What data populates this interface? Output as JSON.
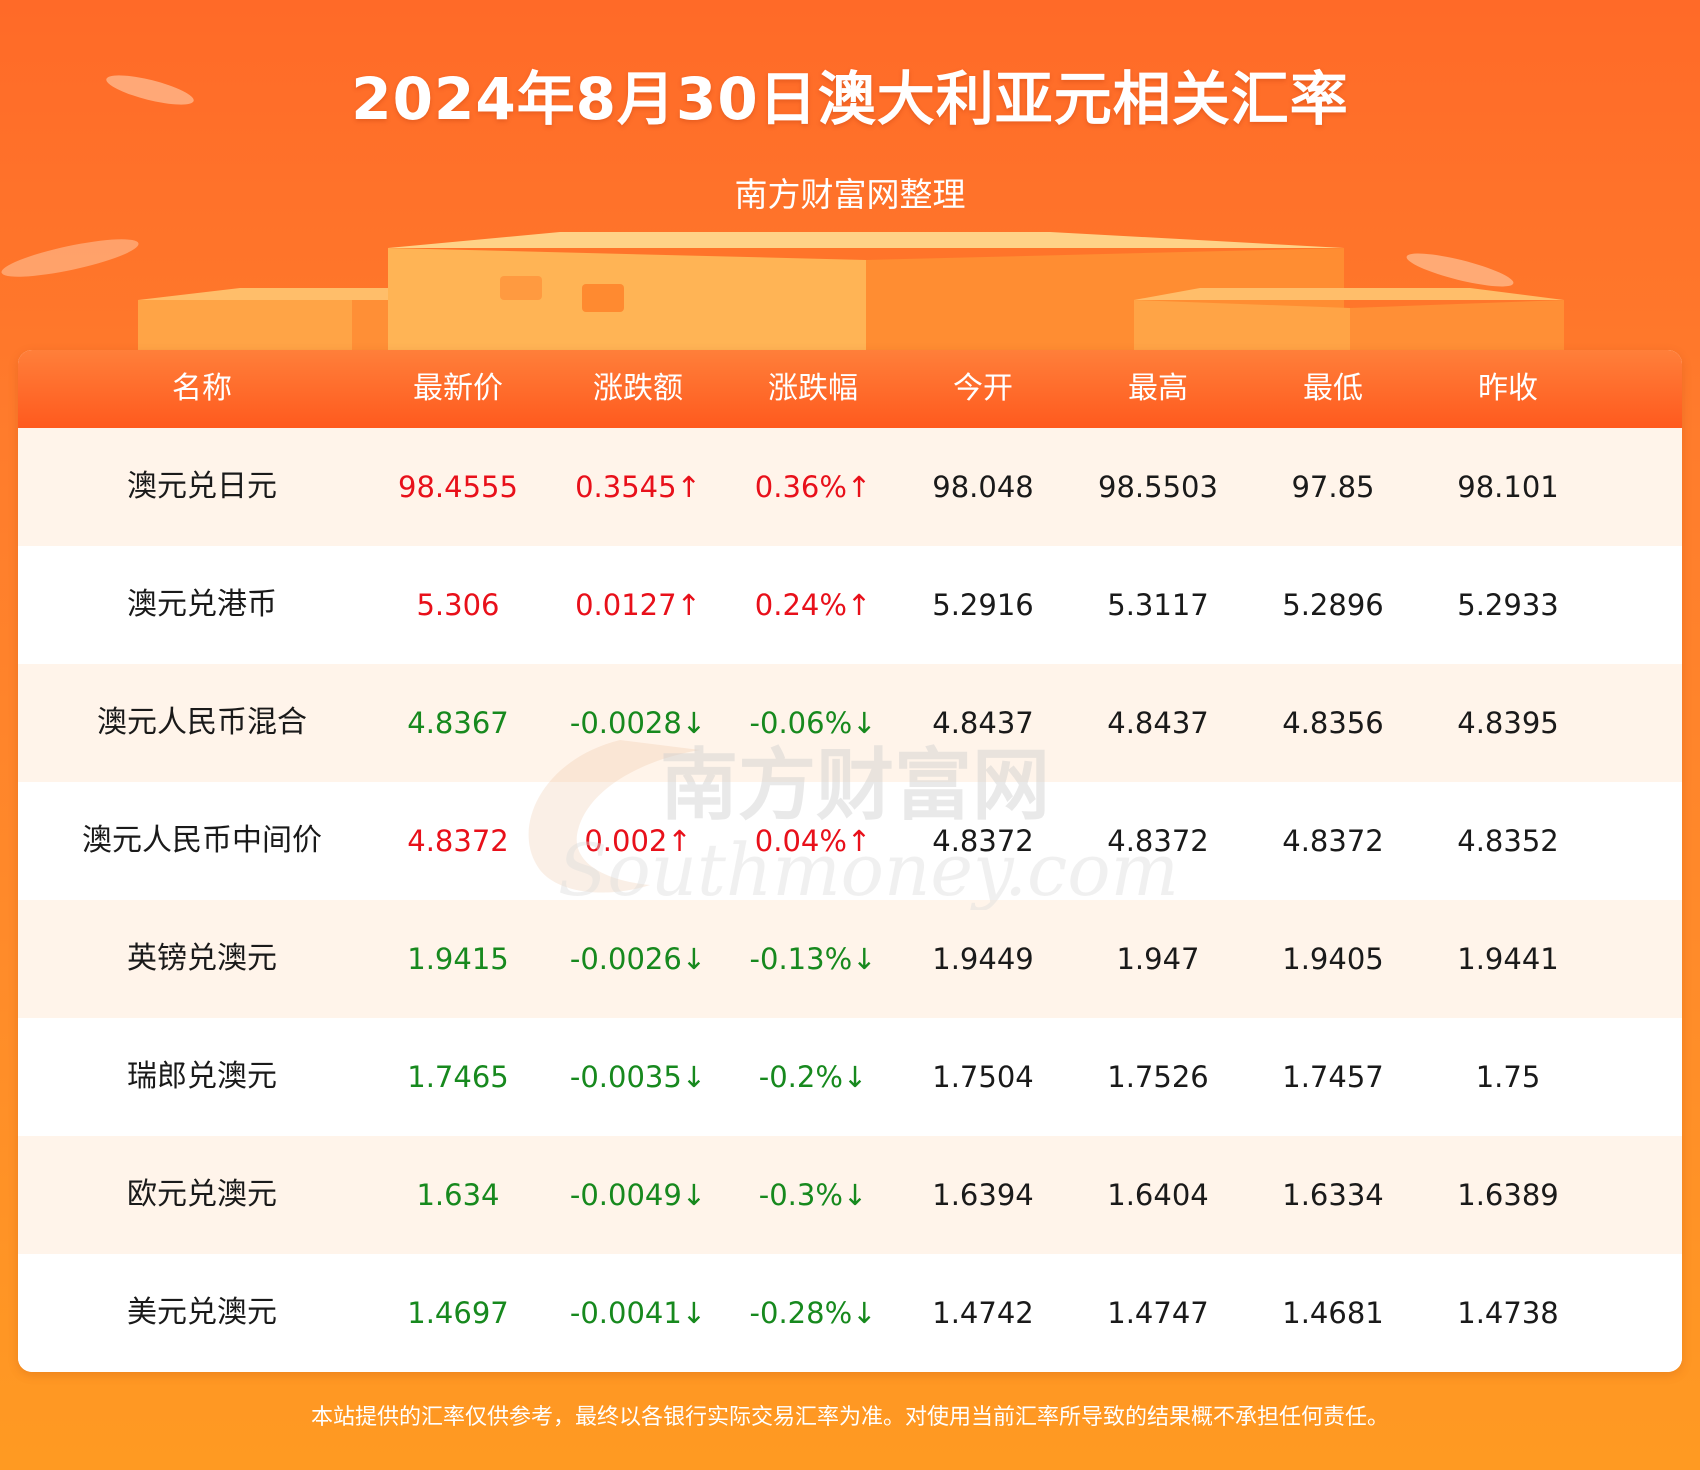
{
  "header": {
    "title": "2024年8月30日澳大利亚元相关汇率",
    "subtitle": "南方财富网整理"
  },
  "table": {
    "columns": [
      "名称",
      "最新价",
      "涨跌额",
      "涨跌幅",
      "今开",
      "最高",
      "最低",
      "昨收"
    ],
    "rows": [
      {
        "name": "澳元兑日元",
        "latest": "98.4555",
        "change": "0.3545↑",
        "pct": "0.36%↑",
        "open": "98.048",
        "high": "98.5503",
        "low": "97.85",
        "prev": "98.101",
        "trend": "up"
      },
      {
        "name": "澳元兑港币",
        "latest": "5.306",
        "change": "0.0127↑",
        "pct": "0.24%↑",
        "open": "5.2916",
        "high": "5.3117",
        "low": "5.2896",
        "prev": "5.2933",
        "trend": "up"
      },
      {
        "name": "澳元人民币混合",
        "latest": "4.8367",
        "change": "-0.0028↓",
        "pct": "-0.06%↓",
        "open": "4.8437",
        "high": "4.8437",
        "low": "4.8356",
        "prev": "4.8395",
        "trend": "down"
      },
      {
        "name": "澳元人民币中间价",
        "latest": "4.8372",
        "change": "0.002↑",
        "pct": "0.04%↑",
        "open": "4.8372",
        "high": "4.8372",
        "low": "4.8372",
        "prev": "4.8352",
        "trend": "up"
      },
      {
        "name": "英镑兑澳元",
        "latest": "1.9415",
        "change": "-0.0026↓",
        "pct": "-0.13%↓",
        "open": "1.9449",
        "high": "1.947",
        "low": "1.9405",
        "prev": "1.9441",
        "trend": "down"
      },
      {
        "name": "瑞郎兑澳元",
        "latest": "1.7465",
        "change": "-0.0035↓",
        "pct": "-0.2%↓",
        "open": "1.7504",
        "high": "1.7526",
        "low": "1.7457",
        "prev": "1.75",
        "trend": "down"
      },
      {
        "name": "欧元兑澳元",
        "latest": "1.634",
        "change": "-0.0049↓",
        "pct": "-0.3%↓",
        "open": "1.6394",
        "high": "1.6404",
        "low": "1.6334",
        "prev": "1.6389",
        "trend": "down"
      },
      {
        "name": "美元兑澳元",
        "latest": "1.4697",
        "change": "-0.0041↓",
        "pct": "-0.28%↓",
        "open": "1.4742",
        "high": "1.4747",
        "low": "1.4681",
        "prev": "1.4738",
        "trend": "down"
      }
    ]
  },
  "watermark": {
    "cn": "南方财富网",
    "en": "Southmoney.com"
  },
  "footer": {
    "disclaimer": "本站提供的汇率仅供参考，最终以各银行实际交易汇率为准。对使用当前汇率所导致的结果概不承担任何责任。"
  },
  "colors": {
    "up": "#e8101a",
    "down": "#17891e",
    "header_bg": "#ff5a1e",
    "row_alt": "#fff4ea"
  }
}
